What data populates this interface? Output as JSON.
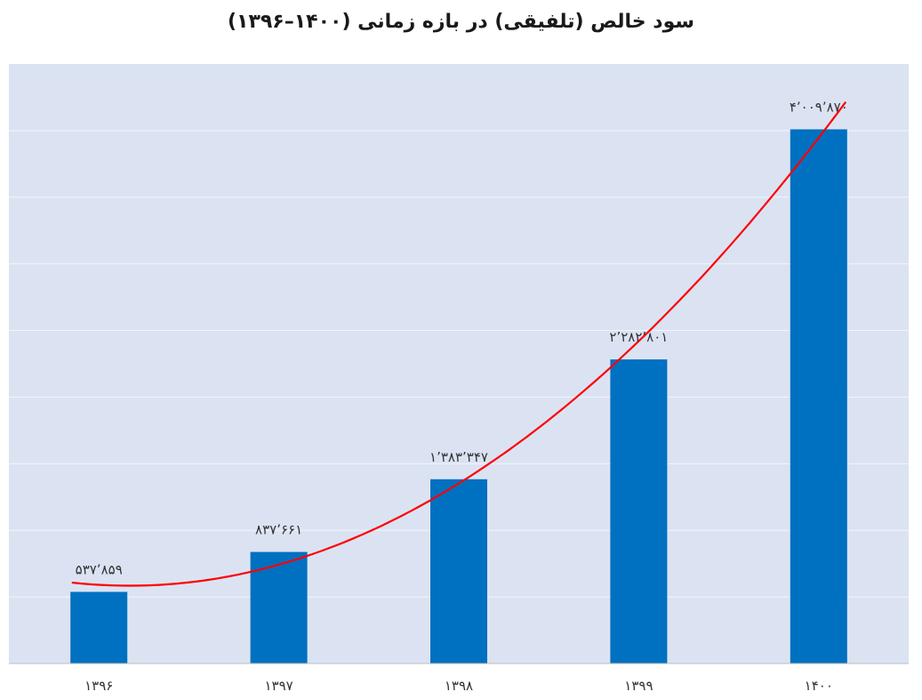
{
  "chart_data": {
    "type": "bar",
    "title": "سود خالص (تلفیقی) در بازه زمانی (۱۴۰۰–۱۳۹۶)",
    "xlabel": "",
    "ylabel": "",
    "categories": [
      "۱۳۹۶",
      "۱۳۹۷",
      "۱۳۹۸",
      "۱۳۹۹",
      "۱۴۰۰"
    ],
    "values": [
      537859,
      837661,
      1383347,
      2282801,
      4009870
    ],
    "data_labels": [
      "۵۳۷٬۸۵۹",
      "۸۳۷٬۶۶۱",
      "۱٬۳۸۳٬۳۴۷",
      "۲٬۲۸۲٬۸۰۱",
      "۴٬۰۰۹٬۸۷۰"
    ],
    "ylim": [
      0,
      4500000
    ],
    "y_gridline_step": 500000,
    "y_tick_labels_shown": false,
    "grid": true,
    "legend": "none",
    "trendline": {
      "type": "polynomial",
      "color": "#ff0000"
    },
    "colors": {
      "plot_background": "#dbe3f3",
      "bar": "#0070c0",
      "gridline": "#f2f4fa",
      "axis": "#bfbfbf",
      "trendline": "#ff0000"
    }
  }
}
